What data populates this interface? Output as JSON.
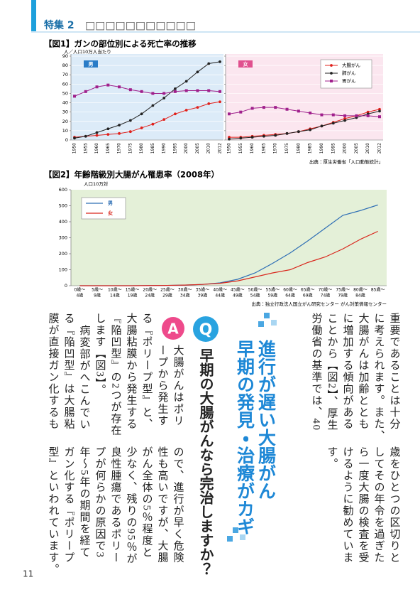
{
  "header": {
    "section": "特集 2",
    "title": "□□□□□□□□□□□"
  },
  "chart_data": [
    {
      "type": "line",
      "title": "【図1】ガンの部位別による死亡率の推移",
      "y_label": "人／人口10万人当たり",
      "categories": [
        "1950",
        "1955",
        "1960",
        "1965",
        "1970",
        "1975",
        "1980",
        "1985",
        "1990",
        "1995",
        "2000",
        "2005",
        "2010",
        "2012"
      ],
      "ylim": [
        0,
        90
      ],
      "yticks": [
        0,
        10,
        20,
        30,
        40,
        50,
        60,
        70,
        80,
        90
      ],
      "grid": true,
      "series": [
        {
          "name": "大腸がん",
          "color": "#e0201b",
          "marker": "circle"
        },
        {
          "name": "肺がん",
          "color": "#222222",
          "marker": "circle"
        },
        {
          "name": "胃がん",
          "color": "#a0208c",
          "marker": "square"
        }
      ],
      "panels": [
        {
          "label": "男",
          "background": "#dcebf8",
          "label_color": "#2a7cc7",
          "values": [
            [
              3,
              4,
              5,
              6,
              7,
              9,
              13,
              17,
              22,
              28,
              32,
              35,
              39,
              41
            ],
            [
              2,
              4,
              8,
              12,
              16,
              21,
              28,
              37,
              45,
              55,
              63,
              73,
              82,
              84
            ],
            [
              47,
              52,
              57,
              59,
              57,
              54,
              52,
              50,
              50,
              52,
              53,
              53,
              53,
              52
            ]
          ]
        },
        {
          "label": "女",
          "background": "#fbe6ef",
          "label_color": "#e0508e",
          "values": [
            [
              3,
              3,
              4,
              5,
              6,
              7,
              9,
              12,
              15,
              19,
              23,
              26,
              30,
              33
            ],
            [
              1,
              2,
              3,
              4,
              5,
              7,
              9,
              11,
              15,
              18,
              21,
              24,
              28,
              31
            ],
            [
              28,
              30,
              34,
              35,
              35,
              33,
              31,
              29,
              27,
              27,
              26,
              26,
              26,
              25
            ]
          ]
        }
      ],
      "source": "出典：厚生労働省「人口動態統計」"
    },
    {
      "type": "line",
      "title": "【図2】年齢階級別大腸がん罹患率（2008年）",
      "y_label": "人口10万対",
      "categories": [
        [
          "0歳〜",
          "4歳"
        ],
        [
          "5歳〜",
          "9歳"
        ],
        [
          "10歳〜",
          "14歳"
        ],
        [
          "15歳〜",
          "19歳"
        ],
        [
          "20歳〜",
          "24歳"
        ],
        [
          "25歳〜",
          "29歳"
        ],
        [
          "30歳〜",
          "34歳"
        ],
        [
          "35歳〜",
          "39歳"
        ],
        [
          "40歳〜",
          "44歳"
        ],
        [
          "45歳〜",
          "49歳"
        ],
        [
          "50歳〜",
          "54歳"
        ],
        [
          "55歳〜",
          "59歳"
        ],
        [
          "60歳〜",
          "64歳"
        ],
        [
          "65歳〜",
          "69歳"
        ],
        [
          "70歳〜",
          "74歳"
        ],
        [
          "75歳〜",
          "79歳"
        ],
        [
          "80歳〜",
          "84歳"
        ],
        [
          "85歳〜"
        ]
      ],
      "ylim": [
        0,
        600
      ],
      "yticks": [
        0,
        100,
        200,
        300,
        400,
        500,
        600
      ],
      "background": "#e4f0d8",
      "series": [
        {
          "name": "男",
          "color": "#2f6fb5",
          "values": [
            0,
            0,
            0,
            0,
            1,
            2,
            4,
            8,
            18,
            40,
            80,
            140,
            205,
            280,
            360,
            440,
            470,
            505
          ]
        },
        {
          "name": "女",
          "color": "#d9261c",
          "values": [
            0,
            0,
            0,
            0,
            1,
            2,
            4,
            8,
            15,
            30,
            55,
            80,
            100,
            145,
            180,
            230,
            290,
            340
          ]
        }
      ],
      "source": "出典：独立行政法人国立がん研究センター がん対策情報センター"
    }
  ],
  "article": {
    "headline": [
      "進行が遅い大腸がん",
      "早期の発見・治療がカギ"
    ],
    "q_mark": "Q",
    "question": "早期の大腸がんなら完治しますか？",
    "a_mark": "A",
    "upper_right": [
      "重要であることは十分",
      "に考えられます。また、",
      "大腸がんは加齢ととも",
      "に増加する傾向がある",
      "ことから【図2】、厚生",
      "労働省の基準では、40"
    ],
    "lower_right": [
      "歳をひとつの区切りと",
      "してその年令を過ぎた",
      "ら一度大腸の検査を受",
      "けるように勧めていま",
      "す。"
    ],
    "answer_upper": [
      "大腸がんはポリ",
      "ープから発生す",
      "る『ポリープ型』と、",
      "大腸粘膜から発生する",
      "『陥凹型』の2つが存在",
      "します【図3】。",
      "病変部がへこんでい",
      "る『陥凹型』は大腸粘",
      "膜が直接ガン化するも"
    ],
    "answer_lower": [
      "ので、進行が早く危険",
      "性も高いですが、大腸",
      "がん全体の5％程度と",
      "少なく、残りの95％が",
      "良性腫瘍であるポリー",
      "プが何らかの原因で3",
      "年～5年の期間を経て",
      "ガン化する『ポリープ",
      "型』といわれています。"
    ]
  },
  "page_number": "11"
}
